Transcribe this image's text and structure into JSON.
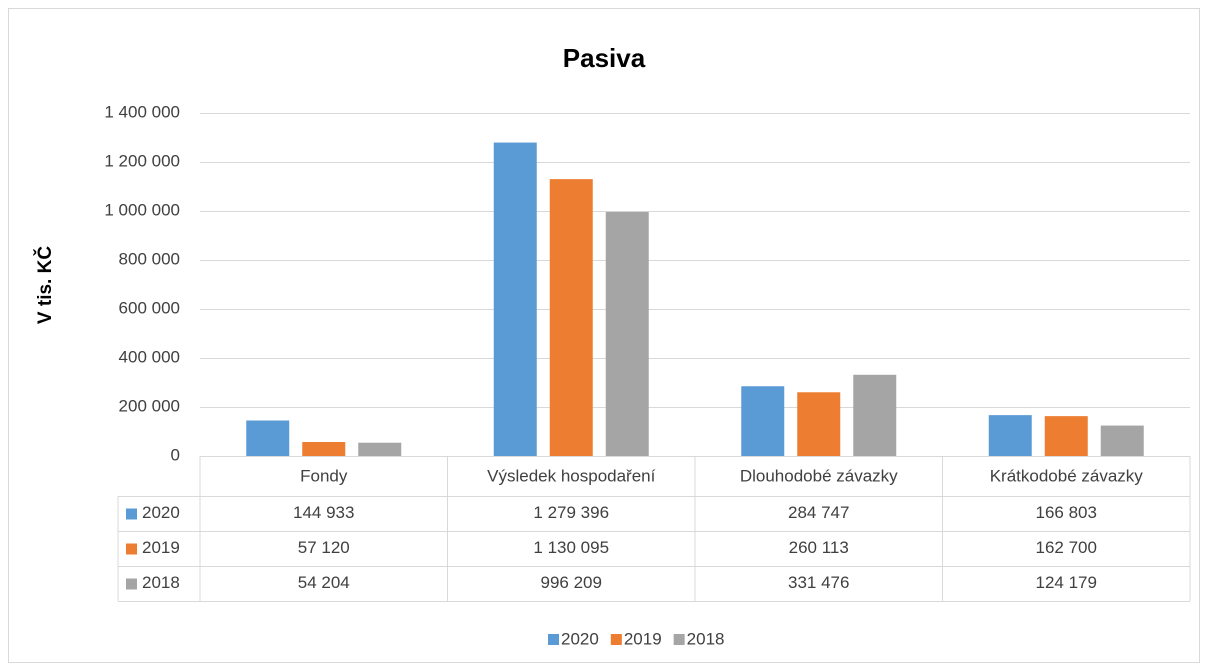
{
  "chart_data": {
    "type": "bar",
    "title": "Pasiva",
    "y_label": "V tis. KČ",
    "categories": [
      "Fondy",
      "Výsledek hospodaření",
      "Dlouhodobé závazky",
      "Krátkodobé závazky"
    ],
    "series": [
      {
        "name": "2020",
        "color": "#5b9bd5",
        "values": [
          144933,
          1279396,
          284747,
          166803
        ],
        "value_labels": [
          "144 933",
          "1 279 396",
          "284 747",
          "166 803"
        ]
      },
      {
        "name": "2019",
        "color": "#ed7d31",
        "values": [
          57120,
          1130095,
          260113,
          162700
        ],
        "value_labels": [
          "57 120",
          "1 130 095",
          "260 113",
          "162 700"
        ]
      },
      {
        "name": "2018",
        "color": "#a5a5a5",
        "values": [
          54204,
          996209,
          331476,
          124179
        ],
        "value_labels": [
          "54 204",
          "996 209",
          "331 476",
          "124 179"
        ]
      }
    ],
    "ylim": [
      0,
      1400000
    ],
    "yticks": [
      0,
      {
        "value": 200000,
        "label": "200 000"
      },
      {
        "value": 400000,
        "label": "400 000"
      },
      {
        "value": 600000,
        "label": "600 000"
      },
      {
        "value": 800000,
        "label": "800 000"
      },
      {
        "value": 1000000,
        "label": "1 000 000"
      },
      {
        "value": 1200000,
        "label": "1 200 000"
      },
      {
        "value": 1400000,
        "label": "1 400 000"
      }
    ],
    "grid": true,
    "legend": "bottom",
    "data_table": true
  }
}
